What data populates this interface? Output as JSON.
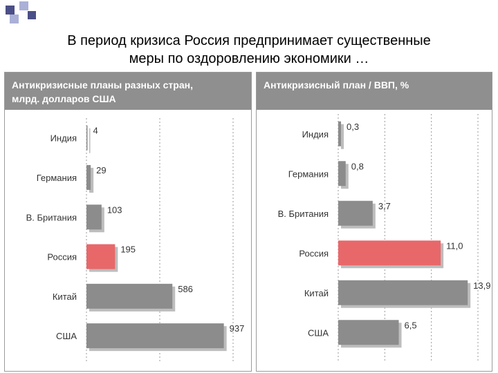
{
  "slide": {
    "title_line1": "В период кризиса Россия предпринимает существенные",
    "title_line2": "меры по оздоровлению экономики …"
  },
  "colors": {
    "bar_default": "#8c8c8c",
    "bar_highlight": "#e8686a",
    "header_bg": "#8f8f8f",
    "deco_dark": "#4b4f87",
    "deco_light": "#aab0d6"
  },
  "chart_data": [
    {
      "type": "bar",
      "orientation": "horizontal",
      "title_line1": "Антикризисные планы разных стран,",
      "title_line2": "млрд. долларов США",
      "categories": [
        "Индия",
        "Германия",
        "В. Британия",
        "Россия",
        "Китай",
        "США"
      ],
      "values": [
        4,
        29,
        103,
        195,
        586,
        937
      ],
      "value_labels": [
        "4",
        "29",
        "103",
        "195",
        "586",
        "937"
      ],
      "highlight": "Россия",
      "xlim": [
        0,
        1000
      ],
      "gridlines": [
        500,
        1000
      ],
      "unit": "млрд. долларов США"
    },
    {
      "type": "bar",
      "orientation": "horizontal",
      "title_line1": "Антикризисный план / ВВП, %",
      "title_line2": "",
      "categories": [
        "Индия",
        "Германия",
        "В. Британия",
        "Россия",
        "Китай",
        "США"
      ],
      "values": [
        0.3,
        0.8,
        3.7,
        11.0,
        13.9,
        6.5
      ],
      "value_labels": [
        "0,3",
        "0,8",
        "3,7",
        "11,0",
        "13,9",
        "6,5"
      ],
      "highlight": "Россия",
      "xlim": [
        0,
        15
      ],
      "gridlines": [
        5,
        10,
        15
      ],
      "unit": "%"
    }
  ]
}
